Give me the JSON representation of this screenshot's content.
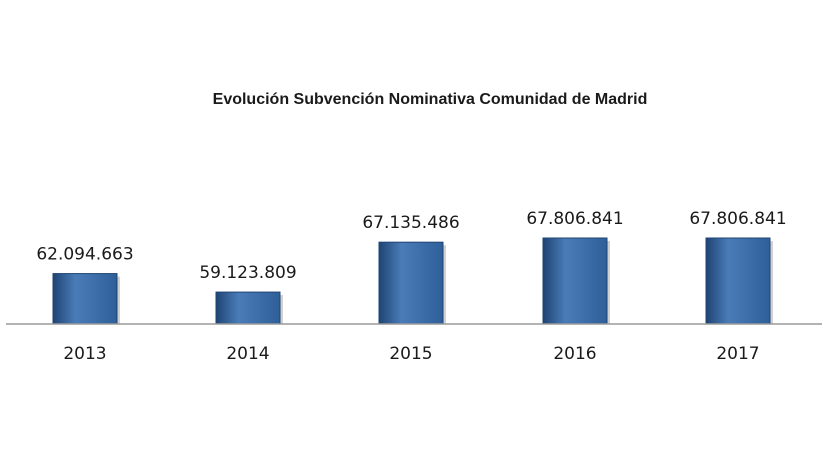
{
  "chart_data": {
    "type": "bar",
    "title": "Evolución Subvención Nominativa Comunidad de Madrid",
    "xlabel": "",
    "ylabel": "",
    "categories": [
      "2013",
      "2014",
      "2015",
      "2016",
      "2017"
    ],
    "values": [
      62094663,
      59123809,
      67135486,
      67806841,
      67806841
    ],
    "value_labels": [
      "62.094.663",
      "59.123.809",
      "67.135.486",
      "67.806.841",
      "67.806.841"
    ],
    "ylim": [
      54000000,
      68000000
    ],
    "grid": false,
    "legend": "none",
    "colors": {
      "bar_fill": "#2f5f99",
      "bar_fill_light": "#4a7cb8",
      "bar_fill_dark": "#1f4474",
      "axis": "#9a9a9a"
    }
  }
}
